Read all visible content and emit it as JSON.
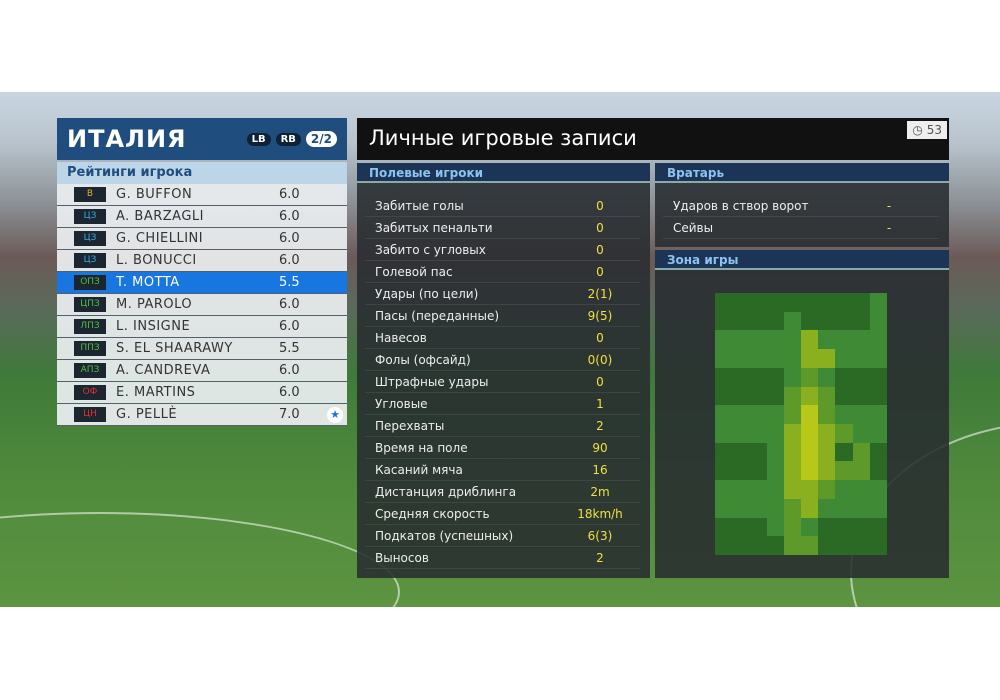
{
  "team": {
    "title": "ИТАЛИЯ",
    "buttons": [
      "LB",
      "RB"
    ],
    "page": "2/2"
  },
  "ratings_header": "Рейтинги игрока",
  "players": [
    {
      "pos": "В",
      "pos_color": "#e0b030",
      "name": "G. BUFFON",
      "rating": "6.0"
    },
    {
      "pos": "ЦЗ",
      "pos_color": "#3aa8e0",
      "name": "A. BARZAGLI",
      "rating": "6.0"
    },
    {
      "pos": "ЦЗ",
      "pos_color": "#3aa8e0",
      "name": "G. CHIELLINI",
      "rating": "6.0"
    },
    {
      "pos": "ЦЗ",
      "pos_color": "#3aa8e0",
      "name": "L. BONUCCI",
      "rating": "6.0"
    },
    {
      "pos": "ОПЗ",
      "pos_color": "#50c040",
      "name": "T. MOTTA",
      "rating": "5.5",
      "selected": true
    },
    {
      "pos": "ЦПЗ",
      "pos_color": "#50c040",
      "name": "M. PAROLO",
      "rating": "6.0"
    },
    {
      "pos": "ЛПЗ",
      "pos_color": "#50c040",
      "name": "L. INSIGNE",
      "rating": "6.0"
    },
    {
      "pos": "ППЗ",
      "pos_color": "#50c040",
      "name": "S. EL SHAARAWY",
      "rating": "5.5"
    },
    {
      "pos": "АПЗ",
      "pos_color": "#50c040",
      "name": "A. CANDREVA",
      "rating": "6.0"
    },
    {
      "pos": "ОФ",
      "pos_color": "#e03030",
      "name": "E. MARTINS",
      "rating": "6.0"
    },
    {
      "pos": "ЦН",
      "pos_color": "#e03030",
      "name": "G. PELLÈ",
      "rating": "7.0",
      "star": true
    }
  ],
  "main": {
    "title": "Личные игровые записи",
    "timer": "53"
  },
  "field": {
    "header": "Полевые игроки",
    "stats": [
      [
        "Забитые голы",
        "0"
      ],
      [
        "Забитых пенальти",
        "0"
      ],
      [
        "Забито с угловых",
        "0"
      ],
      [
        "Голевой пас",
        "0"
      ],
      [
        "Удары (по цели)",
        "2(1)"
      ],
      [
        "Пасы (переданные)",
        "9(5)"
      ],
      [
        "Навесов",
        "0"
      ],
      [
        "Фолы (офсайд)",
        "0(0)"
      ],
      [
        "Штрафные удары",
        "0"
      ],
      [
        "Угловые",
        "1"
      ],
      [
        "Перехваты",
        "2"
      ],
      [
        "Время на поле",
        "90"
      ],
      [
        "Касаний мяча",
        "16"
      ],
      [
        "Дистанция дриблинга",
        "2m"
      ],
      [
        "Средняя скорость",
        "18km/h"
      ],
      [
        "Подкатов (успешных)",
        "6(3)"
      ],
      [
        "Выносов",
        "2"
      ]
    ]
  },
  "keeper": {
    "header": "Вратарь",
    "stats": [
      [
        "Ударов в створ ворот",
        "-"
      ],
      [
        "Сейвы",
        "-"
      ]
    ]
  },
  "zone": {
    "header": "Зона игры",
    "heatmap_levels": [
      [
        0,
        0,
        0,
        0,
        0,
        0,
        0,
        0,
        0,
        1
      ],
      [
        0,
        0,
        0,
        0,
        1,
        0,
        0,
        0,
        0,
        1
      ],
      [
        1,
        1,
        1,
        1,
        1,
        3,
        1,
        1,
        1,
        1
      ],
      [
        1,
        1,
        1,
        1,
        1,
        3,
        3,
        1,
        1,
        1
      ],
      [
        0,
        0,
        0,
        0,
        1,
        2,
        1,
        0,
        0,
        0
      ],
      [
        0,
        0,
        0,
        0,
        2,
        3,
        2,
        0,
        0,
        0
      ],
      [
        1,
        1,
        1,
        1,
        2,
        4,
        2,
        1,
        1,
        1
      ],
      [
        1,
        1,
        1,
        1,
        3,
        4,
        3,
        2,
        1,
        1
      ],
      [
        0,
        0,
        0,
        1,
        3,
        4,
        3,
        0,
        2,
        0
      ],
      [
        0,
        0,
        0,
        1,
        3,
        4,
        3,
        2,
        2,
        0
      ],
      [
        1,
        1,
        1,
        1,
        3,
        3,
        2,
        1,
        1,
        1
      ],
      [
        1,
        1,
        1,
        1,
        2,
        3,
        1,
        1,
        1,
        1
      ],
      [
        0,
        0,
        0,
        1,
        2,
        1,
        0,
        0,
        0,
        0
      ],
      [
        0,
        0,
        0,
        0,
        2,
        2,
        0,
        0,
        0,
        0
      ]
    ],
    "level_colors": [
      "#2a6a25",
      "#3e8a35",
      "#5e9a2a",
      "#8ab020",
      "#b8c818"
    ]
  }
}
